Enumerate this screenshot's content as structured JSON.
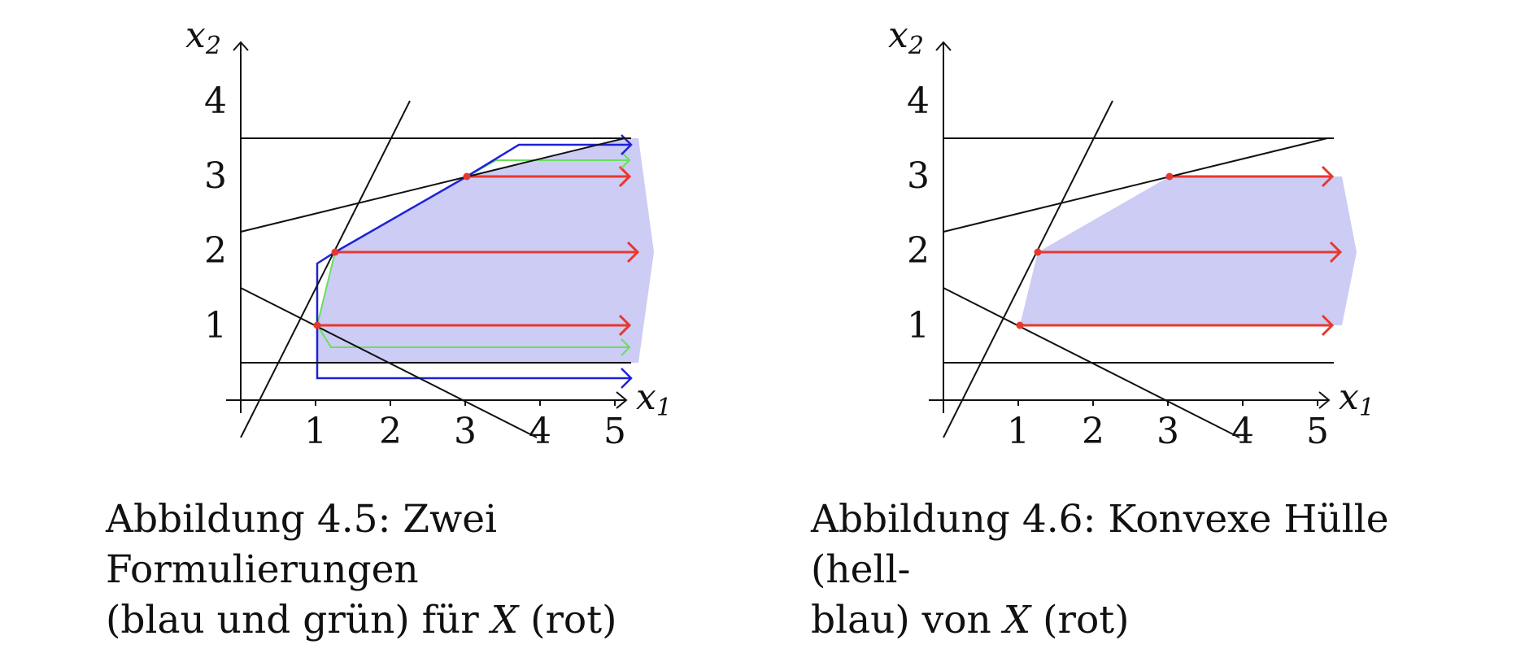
{
  "figures": [
    {
      "id": "4.5",
      "caption": {
        "line1": "Abbildung 4.5: Zwei Formulierungen",
        "line2_pre": "(blau und grün) für ",
        "var": "X",
        "line2_post": " (rot)"
      },
      "axis": {
        "x_label": "x",
        "x_sub": "1",
        "y_label": "x",
        "y_sub": "2",
        "x_ticks": [
          "1",
          "2",
          "3",
          "4",
          "5"
        ],
        "y_ticks": [
          "1",
          "2",
          "3",
          "4"
        ]
      },
      "colors": {
        "fill": "#ccccf5",
        "blue": "#1e22d6",
        "green": "#66e05a",
        "red": "#e8382d"
      },
      "formulations": [
        "blue",
        "green"
      ]
    },
    {
      "id": "4.6",
      "caption": {
        "line1": "Abbildung 4.6: Konvexe Hülle (hell-",
        "line2_pre": "blau) von ",
        "var": "X",
        "line2_post": " (rot)"
      },
      "axis": {
        "x_label": "x",
        "x_sub": "1",
        "y_label": "x",
        "y_sub": "2",
        "x_ticks": [
          "1",
          "2",
          "3",
          "4",
          "5"
        ],
        "y_ticks": [
          "1",
          "2",
          "3",
          "4"
        ]
      },
      "colors": {
        "fill": "#ccccf5",
        "red": "#e8382d"
      }
    }
  ],
  "points_X": [
    [
      1,
      1
    ],
    [
      1.25,
      2
    ],
    [
      3,
      3
    ]
  ]
}
